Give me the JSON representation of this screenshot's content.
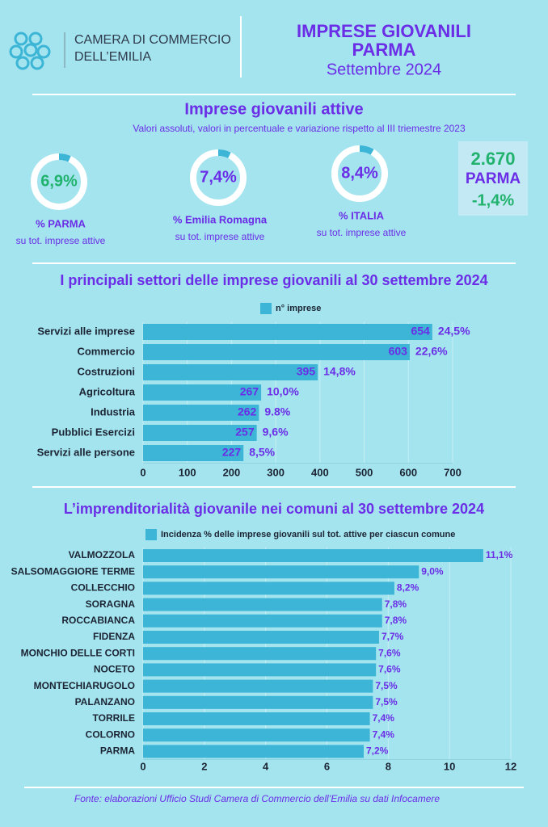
{
  "header": {
    "org_line1": "CAMERA DI COMMERCIO",
    "org_line2": "DELL’EMILIA",
    "title_line1": "IMPRESE GIOVANILI",
    "title_line2": "PARMA",
    "title_line3": "Settembre 2024"
  },
  "summary": {
    "title": "Imprese giovanili attive",
    "subtitle": "Valori assoluti, valori in percentuale e variazione rispetto al III triemestre 2023",
    "kpis": [
      {
        "value": 6.9,
        "value_label": "6,9%",
        "label": "% PARMA",
        "sublabel": "su tot. imprese attive",
        "color": "#21b26e"
      },
      {
        "value": 7.4,
        "value_label": "7,4%",
        "label": "% Emilia Romagna",
        "sublabel": "su tot. imprese attive",
        "color": "#6b2de6"
      },
      {
        "value": 8.4,
        "value_label": "8,4%",
        "label": "% ITALIA",
        "sublabel": "su tot. imprese attive",
        "color": "#6b2de6"
      }
    ],
    "box": {
      "count": "2.670",
      "place": "PARMA",
      "change": "-1,4%"
    }
  },
  "chart_data": [
    {
      "type": "hbar",
      "title": "I principali settori delle imprese giovanili  al 30 settembre 2024",
      "legend": "n° imprese",
      "color": "#3db5d6",
      "categories": [
        "Servizi alle imprese",
        "Commercio",
        "Costruzioni",
        "Agricoltura",
        "Industria",
        "Pubblici Esercizi",
        "Servizi alle persone"
      ],
      "values": [
        654,
        603,
        395,
        267,
        262,
        257,
        227
      ],
      "percent_labels": [
        "24,5%",
        "22,6%",
        "14,8%",
        "10,0%",
        "9.8%",
        "9,6%",
        "8,5%"
      ],
      "xlim": [
        0,
        700
      ],
      "xticks": [
        0,
        100,
        200,
        300,
        400,
        500,
        600,
        700
      ],
      "grid": true
    },
    {
      "type": "hbar",
      "title": "L’imprenditorialità giovanile nei comuni  al 30 settembre 2024",
      "legend": "Incidenza % delle imprese giovanili sul tot. attive per ciascun comune",
      "color": "#3db5d6",
      "categories": [
        "VALMOZZOLA",
        "SALSOMAGGIORE TERME",
        "COLLECCHIO",
        "SORAGNA",
        "ROCCABIANCA",
        "FIDENZA",
        "MONCHIO DELLE CORTI",
        "NOCETO",
        "MONTECHIARUGOLO",
        "PALANZANO",
        "TORRILE",
        "COLORNO",
        "PARMA"
      ],
      "values": [
        11.1,
        9.0,
        8.2,
        7.8,
        7.8,
        7.7,
        7.6,
        7.6,
        7.5,
        7.5,
        7.4,
        7.4,
        7.2
      ],
      "value_labels": [
        "11,1%",
        "9,0%",
        "8,2%",
        "7,8%",
        "7,8%",
        "7,7%",
        "7,6%",
        "7,6%",
        "7,5%",
        "7,5%",
        "7,4%",
        "7,4%",
        "7,2%"
      ],
      "xlim": [
        0,
        12
      ],
      "xticks": [
        0,
        2,
        4,
        6,
        8,
        10,
        12
      ],
      "grid": true
    }
  ],
  "footer": "Fonte: elaborazioni Ufficio Studi Camera di Commercio  dell’Emilia su dati Infocamere"
}
